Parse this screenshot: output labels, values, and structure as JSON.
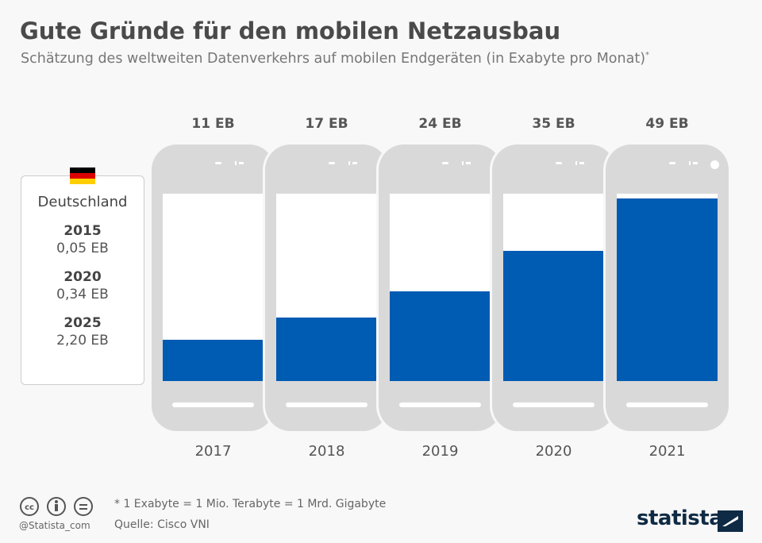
{
  "title": "Gute Gründe für den mobilen Netzausbau",
  "subtitle": "Schätzung des weltweiten Datenverkehrs auf mobilen Endgeräten (in Exabyte pro Monat)",
  "subtitle_mark": "*",
  "chart_data": {
    "type": "bar",
    "categories": [
      "2017",
      "2018",
      "2019",
      "2020",
      "2021"
    ],
    "values": [
      11,
      17,
      24,
      35,
      49
    ],
    "value_labels": [
      "11 EB",
      "17 EB",
      "24 EB",
      "35 EB",
      "49 EB"
    ],
    "ylim": [
      0,
      50
    ],
    "unit": "Exabyte pro Monat",
    "bar_color": "#005bb3"
  },
  "germany": {
    "label": "Deutschland",
    "entries": [
      {
        "year": "2015",
        "value": "0,05 EB"
      },
      {
        "year": "2020",
        "value": "0,34 EB"
      },
      {
        "year": "2025",
        "value": "2,20 EB"
      }
    ]
  },
  "footer": {
    "note": "* 1 Exabyte = 1 Mio. Terabyte = 1 Mrd. Gigabyte",
    "source": "Quelle: Cisco VNI",
    "handle": "@Statista_com",
    "brand": "statista"
  }
}
